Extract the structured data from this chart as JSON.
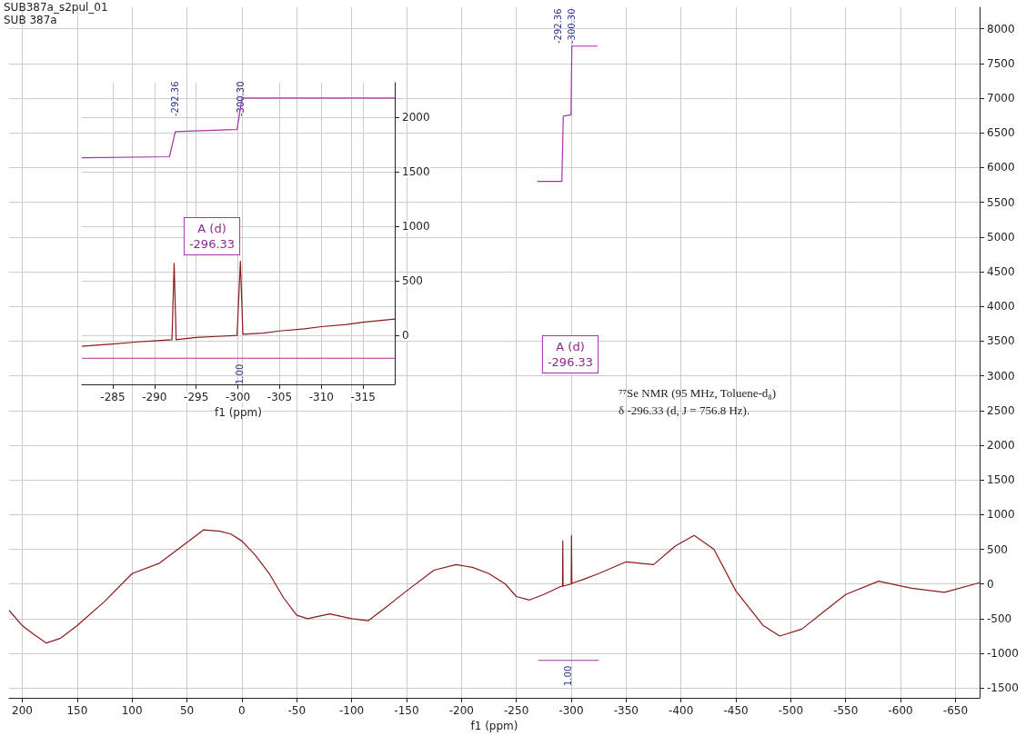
{
  "chart_data": [
    {
      "type": "line",
      "title": "SUB387a_s2pul_01",
      "subtitle": "SUB 387a",
      "xlabel": "f1 (ppm)",
      "xlim": [
        212,
        -672
      ],
      "ylim": [
        -1640,
        8310
      ],
      "xticks": [
        200,
        150,
        100,
        50,
        0,
        -50,
        -100,
        -150,
        -200,
        -250,
        -300,
        -350,
        -400,
        -450,
        -500,
        -550,
        -600,
        -650
      ],
      "yticks": [
        -1500,
        -1000,
        -500,
        0,
        500,
        1000,
        1500,
        2000,
        2500,
        3000,
        3500,
        4000,
        4500,
        5000,
        5500,
        6000,
        6500,
        7000,
        7500,
        8000
      ],
      "grid": true,
      "marker": "none",
      "line_style": "solid",
      "series": [
        {
          "color": "#8b1a1a",
          "x": [
            212,
            200,
            190,
            178,
            165,
            150,
            125,
            100,
            75,
            50,
            35,
            20,
            10,
            0,
            -12,
            -25,
            -38,
            -50,
            -60,
            -80,
            -100,
            -115,
            -130,
            -150,
            -175,
            -195,
            -210,
            -225,
            -240,
            -250,
            -262,
            -275,
            -290,
            -292.1,
            -292.36,
            -292.6,
            -300.0,
            -300.3,
            -300.6,
            -310,
            -325,
            -350,
            -375,
            -395,
            -412,
            -430,
            -450,
            -475,
            -490,
            -510,
            -530,
            -550,
            -580,
            -610,
            -640,
            -672
          ],
          "values": [
            -380,
            -600,
            -720,
            -850,
            -780,
            -600,
            -250,
            150,
            300,
            600,
            780,
            760,
            720,
            620,
            420,
            150,
            -200,
            -450,
            -500,
            -430,
            -500,
            -530,
            -350,
            -100,
            200,
            280,
            240,
            150,
            0,
            -180,
            -230,
            -150,
            -40,
            -30,
            620,
            -30,
            0,
            700,
            10,
            60,
            150,
            320,
            280,
            550,
            700,
            500,
            -100,
            -600,
            -750,
            -650,
            -400,
            -150,
            40,
            -60,
            -120,
            20
          ]
        },
        {
          "color": "#a633a6",
          "x": [
            -269,
            -291.5,
            -292.8,
            -299.8,
            -300.6,
            -324
          ],
          "values": [
            5800,
            5800,
            6740,
            6760,
            7750,
            7750
          ]
        },
        {
          "color": "#a633a6",
          "x": [
            -270,
            -325
          ],
          "values": [
            -1100,
            -1100
          ]
        }
      ],
      "annotations": [
        "⁷⁷Se NMR (95 MHz, Toluene-d₈)",
        "δ -296.33 (d, J = 756.8 Hz).",
        "-292.36",
        "-300.30",
        "A (d)\n-296.33",
        "1.00"
      ]
    },
    {
      "type": "line",
      "xlabel": "f1 (ppm)",
      "xlim": [
        -281.3,
        -318.8
      ],
      "ylim": [
        -450,
        2320
      ],
      "xticks": [
        -285,
        -290,
        -295,
        -300,
        -305,
        -310,
        -315
      ],
      "yticks": [
        0,
        500,
        1000,
        1500,
        2000
      ],
      "grid": true,
      "marker": "none",
      "line_style": "solid",
      "series": [
        {
          "color": "#8b1a1a",
          "x": [
            -281.3,
            -283,
            -285,
            -288,
            -290,
            -292.1,
            -292.36,
            -292.6,
            -295,
            -297.5,
            -299.9,
            -300.3,
            -300.6,
            -303,
            -305,
            -308,
            -310,
            -313,
            -315,
            -318.8
          ],
          "values": [
            -100,
            -90,
            -80,
            -60,
            -50,
            -40,
            660,
            -40,
            -20,
            -10,
            0,
            680,
            10,
            20,
            40,
            60,
            80,
            100,
            120,
            150
          ]
        },
        {
          "color": "#a633a6",
          "x": [
            -281.3,
            -291.8,
            -292.5,
            -299.9,
            -300.5,
            -318.8
          ],
          "values": [
            1630,
            1640,
            1870,
            1890,
            2180,
            2180
          ]
        },
        {
          "color": "#a633a6",
          "x": [
            -281.3,
            -318.8
          ],
          "values": [
            -210,
            -210
          ]
        }
      ],
      "annotations": [
        "-292.36",
        "-300.30",
        "A (d)\n-296.33",
        "1.00"
      ]
    }
  ]
}
